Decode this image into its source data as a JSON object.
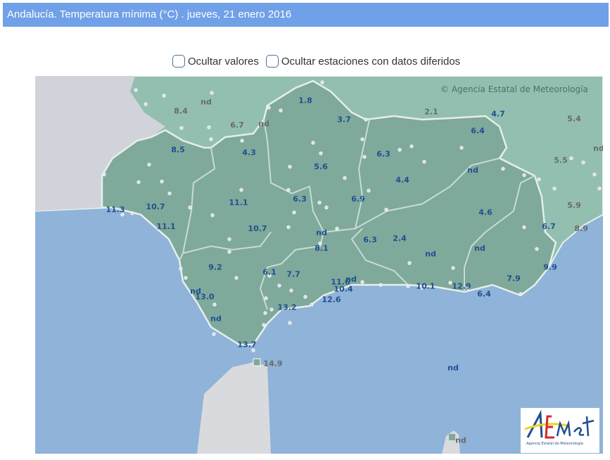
{
  "header": {
    "title": "Andalucía. Temperatura mínima (°C) . jueves, 21 enero 2016"
  },
  "controls": {
    "hide_values": "Ocultar valores",
    "hide_deferred": "Ocultar estaciones con datos diferidos"
  },
  "map": {
    "attribution": "© Agencia Estatal de Meteorología",
    "logo_text": "AEmet",
    "logo_caption": "Agencia Estatal de Meteorología",
    "colors": {
      "sea": "#8fb3d9",
      "andalucia": "#7fa99a",
      "spain": "#92bfb0",
      "portugal": "#d0d4da",
      "morocco": "#d8dadd",
      "value_blue": "#1f4f91",
      "value_grey": "#6a6a6a"
    },
    "stations": [
      {
        "v": "8.4",
        "c": "g"
      },
      {
        "v": "nd",
        "c": "g"
      },
      {
        "v": "6.7",
        "c": "g"
      },
      {
        "v": "nd",
        "c": "g"
      },
      {
        "v": "1.8",
        "c": "b"
      },
      {
        "v": "3.7",
        "c": "b"
      },
      {
        "v": "2.1",
        "c": "g"
      },
      {
        "v": "4.7",
        "c": "b"
      },
      {
        "v": "5.4",
        "c": "g"
      },
      {
        "v": "nd",
        "c": "g"
      },
      {
        "v": "6.4",
        "c": "b"
      },
      {
        "v": "8.5",
        "c": "b"
      },
      {
        "v": "4.3",
        "c": "b"
      },
      {
        "v": "6.3",
        "c": "b"
      },
      {
        "v": "5.6",
        "c": "b"
      },
      {
        "v": "nd",
        "c": "b"
      },
      {
        "v": "5.5",
        "c": "g"
      },
      {
        "v": "4.4",
        "c": "b"
      },
      {
        "v": "11.3",
        "c": "b"
      },
      {
        "v": "10.7",
        "c": "b"
      },
      {
        "v": "11.1",
        "c": "b"
      },
      {
        "v": "6.3",
        "c": "b"
      },
      {
        "v": "6.9",
        "c": "b"
      },
      {
        "v": "4.6",
        "c": "b"
      },
      {
        "v": "5.9",
        "c": "g"
      },
      {
        "v": "11.1",
        "c": "b"
      },
      {
        "v": "10.7",
        "c": "b"
      },
      {
        "v": "nd",
        "c": "b"
      },
      {
        "v": "6.3",
        "c": "b"
      },
      {
        "v": "2.4",
        "c": "b"
      },
      {
        "v": "6.7",
        "c": "b"
      },
      {
        "v": "8.9",
        "c": "g"
      },
      {
        "v": "8.1",
        "c": "b"
      },
      {
        "v": "nd",
        "c": "b"
      },
      {
        "v": "nd",
        "c": "b"
      },
      {
        "v": "9.2",
        "c": "b"
      },
      {
        "v": "6.1",
        "c": "b"
      },
      {
        "v": "7.7",
        "c": "b"
      },
      {
        "v": "9.9",
        "c": "b"
      },
      {
        "v": "7.9",
        "c": "b"
      },
      {
        "v": "11.6",
        "c": "b"
      },
      {
        "v": "nd",
        "c": "b"
      },
      {
        "v": "10.4",
        "c": "b"
      },
      {
        "v": "10.1",
        "c": "b"
      },
      {
        "v": "12.9",
        "c": "b"
      },
      {
        "v": "6.4",
        "c": "b"
      },
      {
        "v": "nd",
        "c": "b"
      },
      {
        "v": "13.0",
        "c": "b"
      },
      {
        "v": "12.6",
        "c": "b"
      },
      {
        "v": "13.2",
        "c": "b"
      },
      {
        "v": "nd",
        "c": "b"
      },
      {
        "v": "13.7",
        "c": "b"
      },
      {
        "v": "14.9",
        "c": "g"
      },
      {
        "v": "nd",
        "c": "b"
      },
      {
        "v": "nd",
        "c": "g"
      }
    ]
  }
}
